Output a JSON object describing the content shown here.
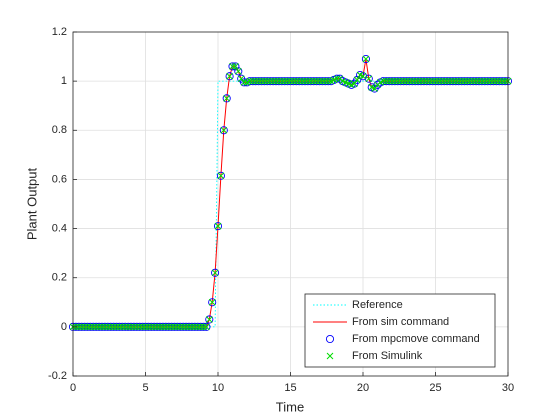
{
  "chart_data": {
    "type": "line",
    "xlabel": "Time",
    "ylabel": "Plant Output",
    "xlim": [
      0,
      30
    ],
    "xticks": [
      0,
      5,
      10,
      15,
      20,
      25,
      30
    ],
    "ylim": [
      -0.2,
      1.2
    ],
    "yticks": [
      -0.2,
      0,
      0.2,
      0.4,
      0.6,
      0.8,
      1,
      1.2
    ],
    "grid": true,
    "legend": "southeast",
    "x": [
      0,
      0.2,
      0.4,
      0.6,
      0.8,
      1,
      1.2,
      1.4,
      1.6,
      1.8,
      2,
      2.2,
      2.4,
      2.6,
      2.8,
      3,
      3.2,
      3.4,
      3.6,
      3.8,
      4,
      4.2,
      4.4,
      4.6,
      4.8,
      5,
      5.2,
      5.4,
      5.6,
      5.8,
      6,
      6.2,
      6.4,
      6.6,
      6.8,
      7,
      7.2,
      7.4,
      7.6,
      7.8,
      8,
      8.2,
      8.4,
      8.6,
      8.8,
      9,
      9.2,
      9.4,
      9.6,
      9.8,
      10,
      10.2,
      10.4,
      10.6,
      10.8,
      11,
      11.2,
      11.4,
      11.6,
      11.8,
      12,
      12.2,
      12.4,
      12.6,
      12.8,
      13,
      13.2,
      13.4,
      13.6,
      13.8,
      14,
      14.2,
      14.4,
      14.6,
      14.8,
      15,
      15.2,
      15.4,
      15.6,
      15.8,
      16,
      16.2,
      16.4,
      16.6,
      16.8,
      17,
      17.2,
      17.4,
      17.6,
      17.8,
      18,
      18.2,
      18.4,
      18.6,
      18.8,
      19,
      19.2,
      19.4,
      19.6,
      19.8,
      20,
      20.2,
      20.4,
      20.6,
      20.8,
      21,
      21.2,
      21.4,
      21.6,
      21.8,
      22,
      22.2,
      22.4,
      22.6,
      22.8,
      23,
      23.2,
      23.4,
      23.6,
      23.8,
      24,
      24.2,
      24.4,
      24.6,
      24.8,
      25,
      25.2,
      25.4,
      25.6,
      25.8,
      26,
      26.2,
      26.4,
      26.6,
      26.8,
      27,
      27.2,
      27.4,
      27.6,
      27.8,
      28,
      28.2,
      28.4,
      28.6,
      28.8,
      29,
      29.2,
      29.4,
      29.6,
      29.8,
      30
    ],
    "series": [
      {
        "name": "Reference",
        "color": "#00ffff",
        "linestyle": "dotted",
        "marker": "none",
        "values": [
          0,
          0,
          0,
          0,
          0,
          0,
          0,
          0,
          0,
          0,
          0,
          0,
          0,
          0,
          0,
          0,
          0,
          0,
          0,
          0,
          0,
          0,
          0,
          0,
          0,
          0,
          0,
          0,
          0,
          0,
          0,
          0,
          0,
          0,
          0,
          0,
          0,
          0,
          0,
          0,
          0,
          0,
          0,
          0,
          0,
          0,
          0,
          0,
          0,
          0,
          1,
          1,
          1,
          1,
          1,
          1,
          1,
          1,
          1,
          1,
          1,
          1,
          1,
          1,
          1,
          1,
          1,
          1,
          1,
          1,
          1,
          1,
          1,
          1,
          1,
          1,
          1,
          1,
          1,
          1,
          1,
          1,
          1,
          1,
          1,
          1,
          1,
          1,
          1,
          1,
          1,
          1,
          1,
          1,
          1,
          1,
          1,
          1,
          1,
          1,
          1,
          1,
          1,
          1,
          1,
          1,
          1,
          1,
          1,
          1,
          1,
          1,
          1,
          1,
          1,
          1,
          1,
          1,
          1,
          1,
          1,
          1,
          1,
          1,
          1,
          1,
          1,
          1,
          1,
          1,
          1,
          1,
          1,
          1,
          1,
          1,
          1,
          1,
          1,
          1,
          1,
          1,
          1,
          1,
          1,
          1,
          1,
          1,
          1,
          1,
          1
        ]
      },
      {
        "name": "From sim command",
        "color": "#ff0000",
        "linestyle": "solid",
        "marker": "none",
        "values": [
          0,
          0,
          0,
          0,
          0,
          0,
          0,
          0,
          0,
          0,
          0,
          0,
          0,
          0,
          0,
          0,
          0,
          0,
          0,
          0,
          0,
          0,
          0,
          0,
          0,
          0,
          0,
          0,
          0,
          0,
          0,
          0,
          0,
          0,
          0,
          0,
          0,
          0,
          0,
          0,
          0,
          0,
          0,
          0,
          0,
          0,
          0,
          0.03,
          0.1,
          0.22,
          0.41,
          0.615,
          0.8,
          0.93,
          1.02,
          1.06,
          1.06,
          1.04,
          1.01,
          0.995,
          0.995,
          1,
          1,
          1,
          1,
          1,
          1,
          1,
          1,
          1,
          1,
          1,
          1,
          1,
          1,
          1,
          1,
          1,
          1,
          1,
          1,
          1,
          1,
          1,
          1,
          1,
          1,
          1,
          1,
          1,
          1.005,
          1.01,
          1.01,
          1,
          0.995,
          0.99,
          0.985,
          0.99,
          1.005,
          1.025,
          1.02,
          1.09,
          1.01,
          0.975,
          0.97,
          0.985,
          0.995,
          1,
          1,
          1,
          1,
          1,
          1,
          1,
          1,
          1,
          1,
          1,
          1,
          1,
          1,
          1,
          1,
          1,
          1,
          1,
          1,
          1,
          1,
          1,
          1,
          1,
          1,
          1,
          1,
          1,
          1,
          1,
          1,
          1,
          1,
          1,
          1,
          1,
          1,
          1,
          1,
          1,
          1,
          1,
          1
        ]
      },
      {
        "name": "From mpcmove command",
        "color": "#0000ff",
        "linestyle": "none",
        "marker": "o",
        "values": [
          0,
          0,
          0,
          0,
          0,
          0,
          0,
          0,
          0,
          0,
          0,
          0,
          0,
          0,
          0,
          0,
          0,
          0,
          0,
          0,
          0,
          0,
          0,
          0,
          0,
          0,
          0,
          0,
          0,
          0,
          0,
          0,
          0,
          0,
          0,
          0,
          0,
          0,
          0,
          0,
          0,
          0,
          0,
          0,
          0,
          0,
          0,
          0.03,
          0.1,
          0.22,
          0.41,
          0.615,
          0.8,
          0.93,
          1.02,
          1.06,
          1.06,
          1.04,
          1.01,
          0.995,
          0.995,
          1,
          1,
          1,
          1,
          1,
          1,
          1,
          1,
          1,
          1,
          1,
          1,
          1,
          1,
          1,
          1,
          1,
          1,
          1,
          1,
          1,
          1,
          1,
          1,
          1,
          1,
          1,
          1,
          1,
          1.005,
          1.01,
          1.01,
          1,
          0.995,
          0.99,
          0.985,
          0.99,
          1.005,
          1.025,
          1.02,
          1.09,
          1.01,
          0.975,
          0.97,
          0.985,
          0.995,
          1,
          1,
          1,
          1,
          1,
          1,
          1,
          1,
          1,
          1,
          1,
          1,
          1,
          1,
          1,
          1,
          1,
          1,
          1,
          1,
          1,
          1,
          1,
          1,
          1,
          1,
          1,
          1,
          1,
          1,
          1,
          1,
          1,
          1,
          1,
          1,
          1,
          1,
          1,
          1,
          1,
          1,
          1,
          1
        ]
      },
      {
        "name": "From Simulink",
        "color": "#00dd00",
        "linestyle": "none",
        "marker": "x",
        "values": [
          0,
          0,
          0,
          0,
          0,
          0,
          0,
          0,
          0,
          0,
          0,
          0,
          0,
          0,
          0,
          0,
          0,
          0,
          0,
          0,
          0,
          0,
          0,
          0,
          0,
          0,
          0,
          0,
          0,
          0,
          0,
          0,
          0,
          0,
          0,
          0,
          0,
          0,
          0,
          0,
          0,
          0,
          0,
          0,
          0,
          0,
          0,
          0.03,
          0.1,
          0.22,
          0.41,
          0.615,
          0.8,
          0.93,
          1.02,
          1.06,
          1.06,
          1.04,
          1.01,
          0.995,
          0.995,
          1,
          1,
          1,
          1,
          1,
          1,
          1,
          1,
          1,
          1,
          1,
          1,
          1,
          1,
          1,
          1,
          1,
          1,
          1,
          1,
          1,
          1,
          1,
          1,
          1,
          1,
          1,
          1,
          1,
          1.005,
          1.01,
          1.01,
          1,
          0.995,
          0.99,
          0.985,
          0.99,
          1.005,
          1.025,
          1.02,
          1.09,
          1.01,
          0.975,
          0.97,
          0.985,
          0.995,
          1,
          1,
          1,
          1,
          1,
          1,
          1,
          1,
          1,
          1,
          1,
          1,
          1,
          1,
          1,
          1,
          1,
          1,
          1,
          1,
          1,
          1,
          1,
          1,
          1,
          1,
          1,
          1,
          1,
          1,
          1,
          1,
          1,
          1,
          1,
          1,
          1,
          1,
          1,
          1,
          1,
          1,
          1,
          1
        ]
      }
    ]
  }
}
